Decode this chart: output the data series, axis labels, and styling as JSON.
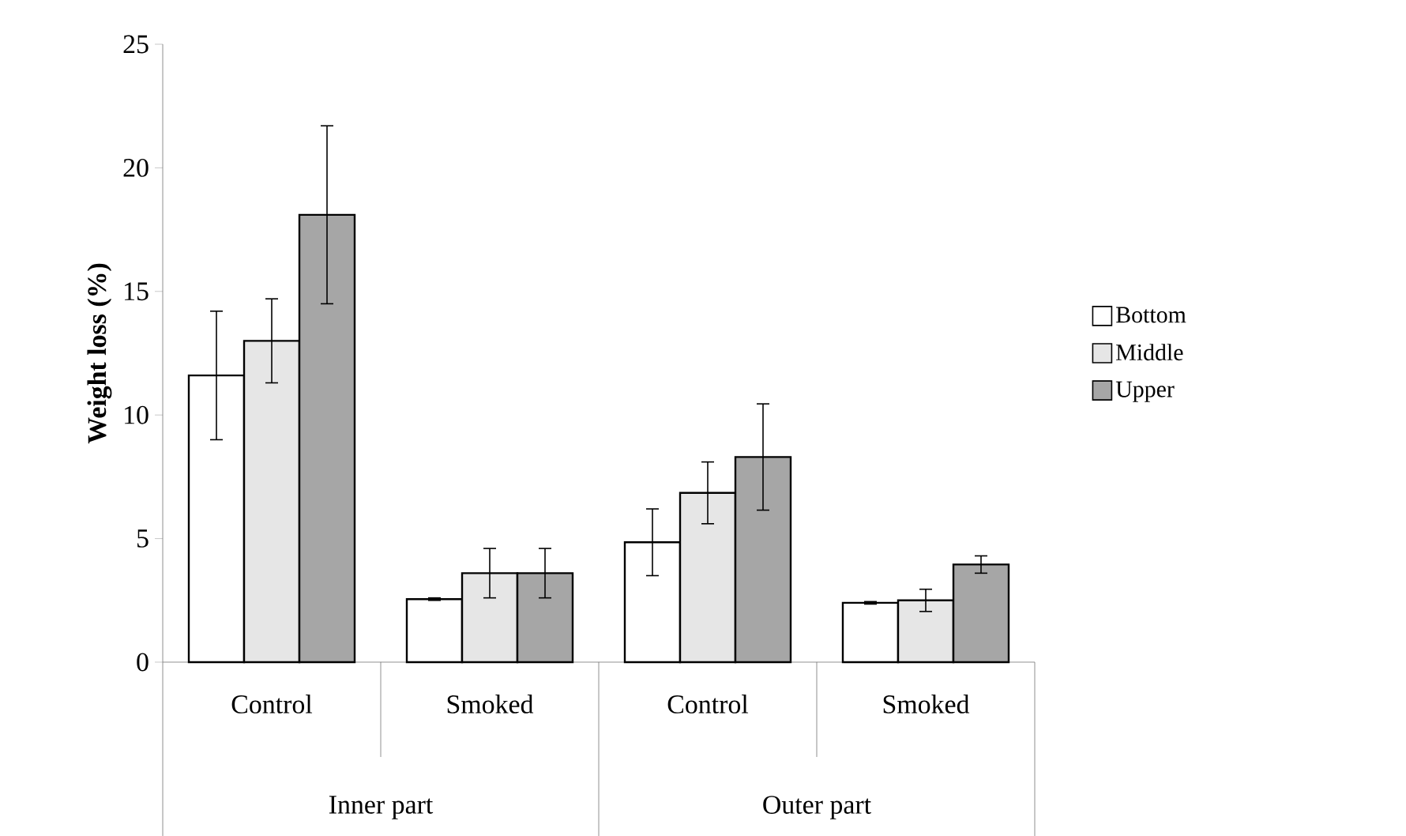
{
  "chart_data": {
    "type": "bar",
    "ylabel": "Weight loss (%)",
    "categories": [
      "Control",
      "Smoked",
      "Control",
      "Smoked"
    ],
    "series": [
      {
        "name": "Bottom",
        "color": "#ffffff",
        "values": [
          11.6,
          2.55,
          4.85,
          2.4
        ],
        "errors": [
          2.6,
          0.05,
          1.35,
          0.05
        ]
      },
      {
        "name": "Middle",
        "color": "#e6e6e6",
        "values": [
          13.0,
          3.6,
          6.85,
          2.5
        ],
        "errors": [
          1.7,
          1.0,
          1.25,
          0.45
        ]
      },
      {
        "name": "Upper",
        "color": "#a6a6a6",
        "values": [
          18.1,
          3.6,
          8.3,
          3.95
        ],
        "errors": [
          3.6,
          1.0,
          2.15,
          0.35
        ]
      }
    ],
    "annotations": [
      "Inner part",
      "Outer part"
    ],
    "ylim": [
      0,
      25
    ],
    "yticks": [
      0,
      5,
      10,
      15,
      20,
      25
    ],
    "grid": false,
    "legend": "right"
  }
}
